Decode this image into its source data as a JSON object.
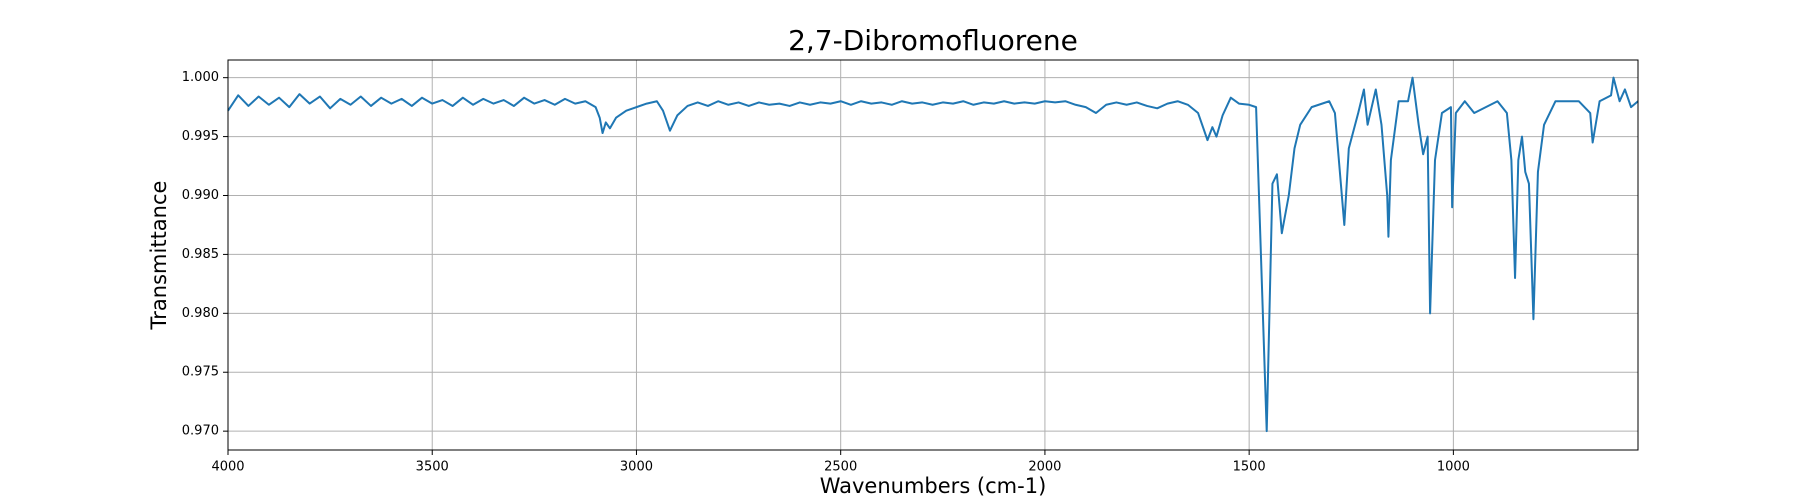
{
  "chart_data": {
    "type": "line",
    "title": "2,7-Dibromofluorene",
    "x_label": "Wavenumbers (cm-1)",
    "y_label": "Transmittance",
    "xlim": [
      4000,
      548
    ],
    "ylim": [
      0.9684,
      1.0015
    ],
    "xticks": [
      4000,
      3500,
      3000,
      2500,
      2000,
      1500,
      1000
    ],
    "yticks": [
      {
        "value": 0.97,
        "label": "0.970"
      },
      {
        "value": 0.975,
        "label": "0.975"
      },
      {
        "value": 0.98,
        "label": "0.980"
      },
      {
        "value": 0.985,
        "label": "0.985"
      },
      {
        "value": 0.99,
        "label": "0.990"
      },
      {
        "value": 0.995,
        "label": "0.995"
      },
      {
        "value": 1.0,
        "label": "1.000"
      }
    ],
    "grid": true,
    "series": [
      {
        "name": "2,7-Dibromofluorene",
        "color": "#1f77b4",
        "x": [
          4000,
          3975,
          3950,
          3925,
          3900,
          3875,
          3850,
          3825,
          3800,
          3775,
          3750,
          3725,
          3700,
          3675,
          3650,
          3625,
          3600,
          3575,
          3550,
          3525,
          3500,
          3475,
          3450,
          3425,
          3400,
          3375,
          3350,
          3325,
          3300,
          3275,
          3250,
          3225,
          3200,
          3175,
          3150,
          3125,
          3100,
          3090,
          3083,
          3075,
          3065,
          3050,
          3025,
          3000,
          2975,
          2950,
          2935,
          2918,
          2900,
          2875,
          2850,
          2825,
          2800,
          2775,
          2750,
          2725,
          2700,
          2675,
          2650,
          2625,
          2600,
          2575,
          2550,
          2525,
          2500,
          2475,
          2450,
          2425,
          2400,
          2375,
          2350,
          2325,
          2300,
          2275,
          2250,
          2225,
          2200,
          2175,
          2150,
          2125,
          2100,
          2075,
          2050,
          2025,
          2000,
          1975,
          1950,
          1925,
          1900,
          1875,
          1850,
          1825,
          1800,
          1775,
          1750,
          1725,
          1700,
          1675,
          1650,
          1625,
          1602,
          1590,
          1580,
          1565,
          1545,
          1525,
          1500,
          1483,
          1457,
          1443,
          1432,
          1420,
          1403,
          1389,
          1375,
          1347,
          1304,
          1290,
          1267,
          1256,
          1233,
          1219,
          1210,
          1190,
          1176,
          1162,
          1159,
          1153,
          1134,
          1111,
          1100,
          1085,
          1074,
          1063,
          1057,
          1045,
          1028,
          1006,
          1003,
          994,
          972,
          949,
          892,
          869,
          858,
          849,
          841,
          832,
          824,
          815,
          804,
          793,
          778,
          750,
          693,
          665,
          659,
          642,
          614,
          608,
          593,
          580,
          565,
          548
        ],
        "values": [
          0.9972,
          0.9985,
          0.9976,
          0.9984,
          0.9977,
          0.9983,
          0.9975,
          0.9986,
          0.9978,
          0.9984,
          0.9974,
          0.9982,
          0.9977,
          0.9984,
          0.9976,
          0.9983,
          0.9978,
          0.9982,
          0.9976,
          0.9983,
          0.9978,
          0.9981,
          0.9976,
          0.9983,
          0.9977,
          0.9982,
          0.9978,
          0.9981,
          0.9976,
          0.9983,
          0.9978,
          0.9981,
          0.9977,
          0.9982,
          0.9978,
          0.998,
          0.9975,
          0.9966,
          0.9953,
          0.9962,
          0.9957,
          0.9966,
          0.9972,
          0.9975,
          0.9978,
          0.998,
          0.9972,
          0.9955,
          0.9968,
          0.9976,
          0.9979,
          0.9976,
          0.998,
          0.9977,
          0.9979,
          0.9976,
          0.9979,
          0.9977,
          0.9978,
          0.9976,
          0.9979,
          0.9977,
          0.9979,
          0.9978,
          0.998,
          0.9977,
          0.998,
          0.9978,
          0.9979,
          0.9977,
          0.998,
          0.9978,
          0.9979,
          0.9977,
          0.9979,
          0.9978,
          0.998,
          0.9977,
          0.9979,
          0.9978,
          0.998,
          0.9978,
          0.9979,
          0.9978,
          0.998,
          0.9979,
          0.998,
          0.9977,
          0.9975,
          0.997,
          0.9977,
          0.9979,
          0.9977,
          0.9979,
          0.9976,
          0.9974,
          0.9978,
          0.998,
          0.9977,
          0.997,
          0.9947,
          0.9958,
          0.995,
          0.9968,
          0.9983,
          0.9978,
          0.9977,
          0.9975,
          0.97,
          0.991,
          0.9918,
          0.9868,
          0.99,
          0.994,
          0.996,
          0.9975,
          0.998,
          0.997,
          0.9875,
          0.994,
          0.997,
          0.999,
          0.996,
          0.999,
          0.996,
          0.99,
          0.9865,
          0.993,
          0.998,
          0.998,
          1.0,
          0.996,
          0.9935,
          0.995,
          0.98,
          0.993,
          0.997,
          0.9975,
          0.989,
          0.997,
          0.998,
          0.997,
          0.998,
          0.997,
          0.993,
          0.983,
          0.993,
          0.995,
          0.992,
          0.991,
          0.9795,
          0.992,
          0.996,
          0.998,
          0.998,
          0.997,
          0.9945,
          0.998,
          0.9985,
          1.0,
          0.998,
          0.999,
          0.9975,
          0.998
        ]
      }
    ]
  }
}
